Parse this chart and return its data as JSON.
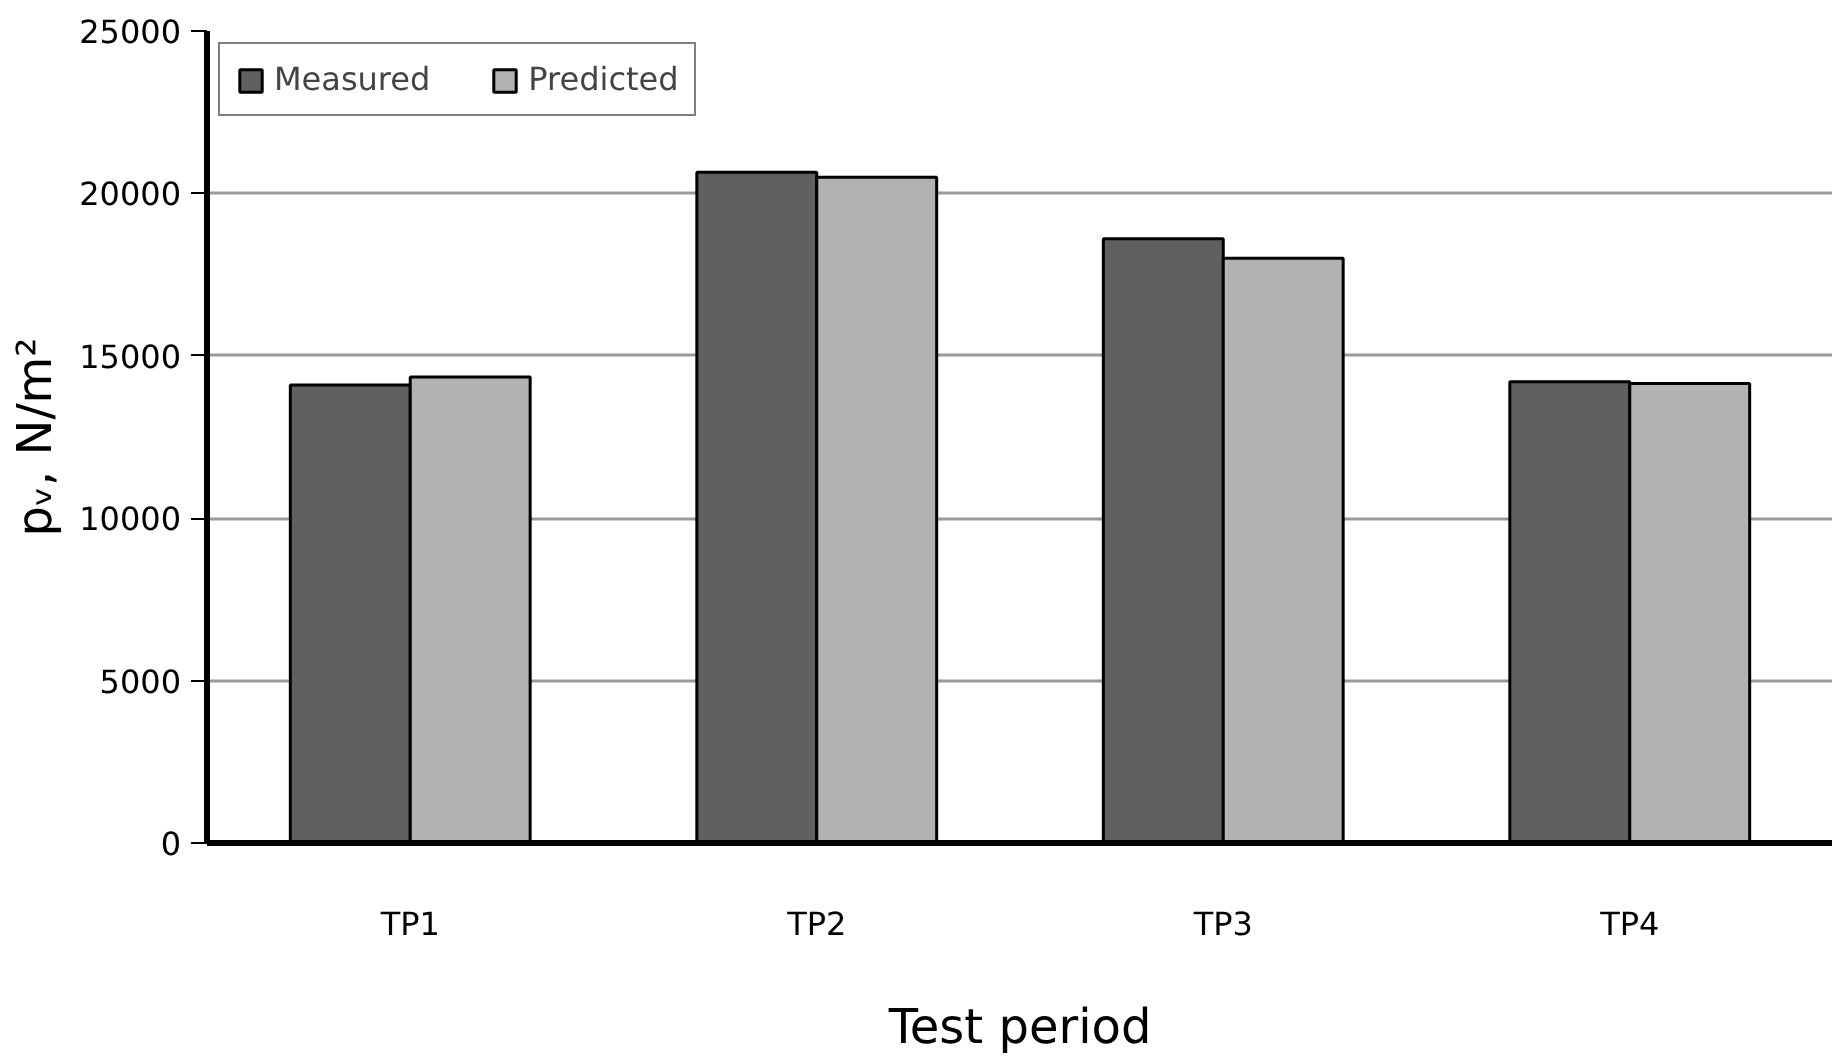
{
  "chart_data": {
    "type": "bar",
    "xlabel": "Test period",
    "ylabel": "pᵥ, N/m²",
    "categories": [
      "TP1",
      "TP2",
      "TP3",
      "TP4"
    ],
    "series": [
      {
        "name": "Measured",
        "color": "#606060",
        "values": [
          14100,
          20650,
          18600,
          14200
        ]
      },
      {
        "name": "Predicted",
        "color": "#b2b2b2",
        "values": [
          14350,
          20500,
          18000,
          14150
        ]
      }
    ],
    "ylim": [
      0,
      25000
    ],
    "yticks": [
      0,
      5000,
      10000,
      15000,
      20000,
      25000
    ],
    "grid": "y",
    "legend": "top left"
  }
}
